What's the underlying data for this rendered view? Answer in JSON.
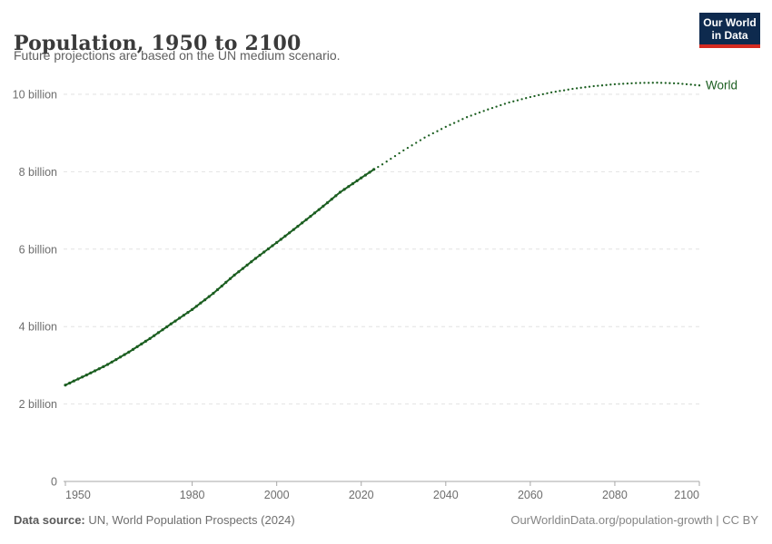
{
  "header": {
    "title": "Population, 1950 to 2100",
    "subtitle": "Future projections are based on the UN medium scenario."
  },
  "logo": {
    "line1": "Our World",
    "line2": "in Data",
    "background_color": "#0e2a4e",
    "accent_bar_color": "#d42a20"
  },
  "footer": {
    "source_label": "Data source:",
    "source_text": " UN, World Population Prospects (2024)",
    "right_text": "OurWorldinData.org/population-growth | CC BY"
  },
  "chart_data": {
    "type": "line",
    "title": "Population, 1950 to 2100",
    "subtitle": "Future projections are based on the UN medium scenario.",
    "xlabel": "",
    "ylabel": "",
    "unit": "billion",
    "xlim": [
      1950,
      2100
    ],
    "ylim": [
      0,
      10.5
    ],
    "grid": "horizontal-dashed",
    "legend_position": "end-of-line",
    "xticks": [
      1950,
      1980,
      2000,
      2020,
      2040,
      2060,
      2080,
      2100
    ],
    "yticks": [
      {
        "value": 0,
        "label": "0"
      },
      {
        "value": 2,
        "label": "2 billion"
      },
      {
        "value": 4,
        "label": "4 billion"
      },
      {
        "value": 6,
        "label": "6 billion"
      },
      {
        "value": 8,
        "label": "8 billion"
      },
      {
        "value": 10,
        "label": "10 billion"
      }
    ],
    "colors": {
      "series_green": "#1b5e20",
      "gridline": "#e2e2e2",
      "axis": "#a7a7a7",
      "tick_label": "#6e6e6e"
    },
    "series": [
      {
        "name": "World",
        "color": "#1b5e20",
        "historical_style": "solid-with-markers",
        "projection_style": "dotted",
        "historical": [
          [
            1950,
            2.49
          ],
          [
            1955,
            2.75
          ],
          [
            1960,
            3.02
          ],
          [
            1965,
            3.34
          ],
          [
            1970,
            3.69
          ],
          [
            1975,
            4.07
          ],
          [
            1980,
            4.44
          ],
          [
            1985,
            4.86
          ],
          [
            1990,
            5.33
          ],
          [
            1995,
            5.76
          ],
          [
            2000,
            6.17
          ],
          [
            2005,
            6.59
          ],
          [
            2010,
            7.02
          ],
          [
            2015,
            7.47
          ],
          [
            2020,
            7.84
          ],
          [
            2023,
            8.06
          ]
        ],
        "projection": [
          [
            2023,
            8.06
          ],
          [
            2025,
            8.19
          ],
          [
            2030,
            8.55
          ],
          [
            2035,
            8.88
          ],
          [
            2040,
            9.16
          ],
          [
            2045,
            9.41
          ],
          [
            2050,
            9.61
          ],
          [
            2055,
            9.79
          ],
          [
            2060,
            9.93
          ],
          [
            2065,
            10.05
          ],
          [
            2070,
            10.14
          ],
          [
            2075,
            10.21
          ],
          [
            2080,
            10.26
          ],
          [
            2085,
            10.29
          ],
          [
            2090,
            10.3
          ],
          [
            2095,
            10.28
          ],
          [
            2100,
            10.23
          ]
        ]
      }
    ]
  }
}
